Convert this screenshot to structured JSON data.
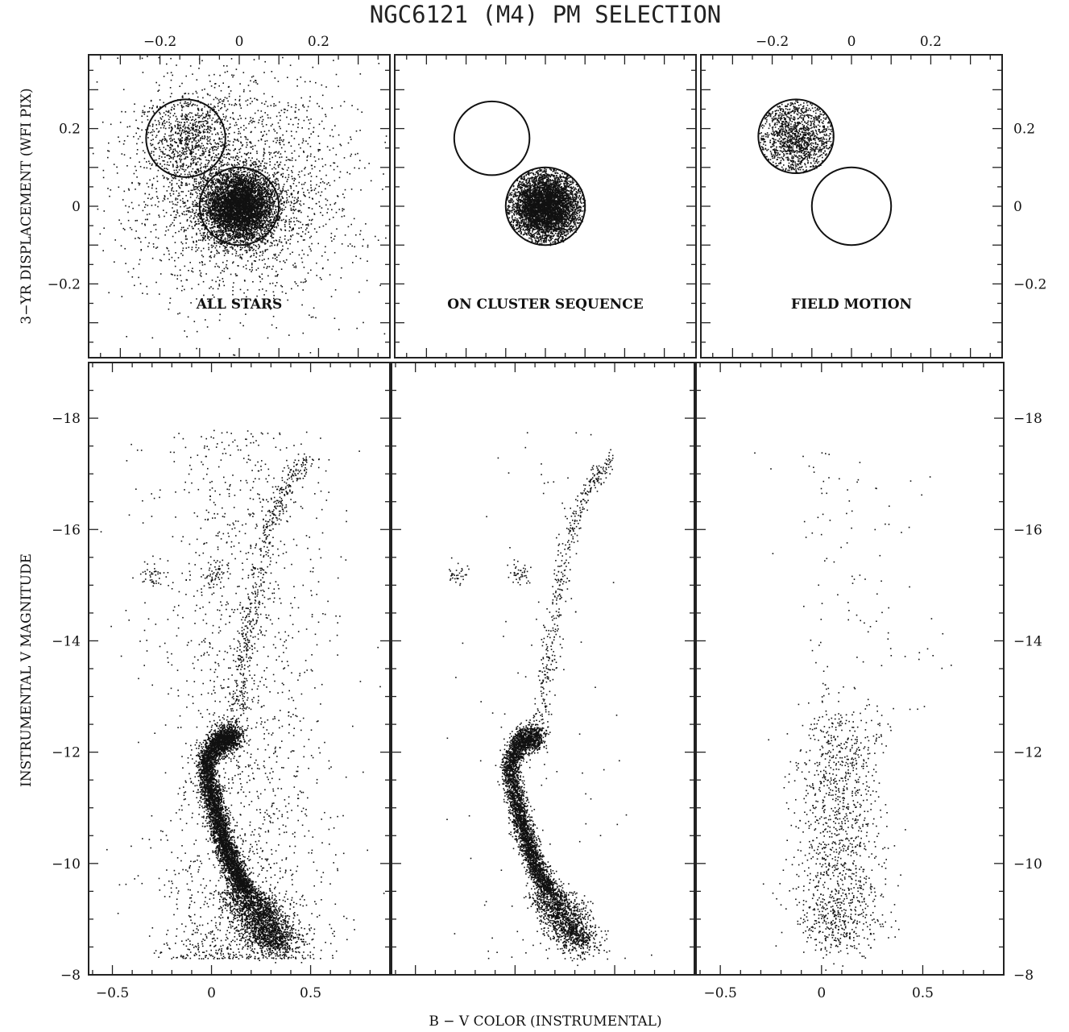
{
  "title": "NGC6121 (M4) PM SELECTION",
  "colors": {
    "points": "#111111",
    "frame": "#222222",
    "background": "#ffffff"
  },
  "chart_data": [
    {
      "type": "scatter",
      "panel": "top-left",
      "label": "ALL STARS",
      "xlim": [
        -0.38,
        0.38
      ],
      "ylim": [
        -0.39,
        0.39
      ],
      "xticks": [
        -0.2,
        0,
        0.2
      ],
      "xticklabels": [
        "−0.2",
        "0",
        "0.2"
      ],
      "yticks": [
        -0.2,
        0,
        0.2
      ],
      "yticklabels": [
        "−0.2",
        "0",
        "0.2"
      ],
      "ylabel": "3−YR DISPLACEMENT (WFI PIX)",
      "populations": [
        {
          "center": [
            0.0,
            0.0
          ],
          "sigma": 0.045,
          "count": 5200
        },
        {
          "center": [
            -0.13,
            0.18
          ],
          "sigma": 0.055,
          "count": 700
        },
        {
          "center": [
            0.0,
            0.05
          ],
          "sigma": 0.15,
          "count": 2200
        }
      ],
      "selection_circles": [
        {
          "center": [
            -0.135,
            0.175
          ],
          "radius": 0.1
        },
        {
          "center": [
            0.0,
            0.0
          ],
          "radius": 0.1
        }
      ]
    },
    {
      "type": "scatter",
      "panel": "top-middle",
      "label": "ON CLUSTER SEQUENCE",
      "xlim": [
        -0.38,
        0.38
      ],
      "ylim": [
        -0.39,
        0.39
      ],
      "populations": [
        {
          "center": [
            0.0,
            0.0
          ],
          "sigma": 0.045,
          "count": 4800,
          "clip_radius": 0.1
        }
      ],
      "selection_circles": [
        {
          "center": [
            -0.135,
            0.175
          ],
          "radius": 0.095
        },
        {
          "center": [
            0.0,
            0.0
          ],
          "radius": 0.1
        }
      ]
    },
    {
      "type": "scatter",
      "panel": "top-right",
      "label": "FIELD MOTION",
      "xlim": [
        -0.38,
        0.38
      ],
      "ylim": [
        -0.39,
        0.39
      ],
      "xticks": [
        -0.2,
        0,
        0.2
      ],
      "xticklabels": [
        "−0.2",
        "0",
        "0.2"
      ],
      "yticks": [
        -0.2,
        0,
        0.2
      ],
      "yticklabels": [
        "−0.2",
        "0",
        "0.2"
      ],
      "populations": [
        {
          "center": [
            -0.14,
            0.18
          ],
          "sigma": 0.055,
          "count": 1300,
          "clip_radius": 0.095
        }
      ],
      "selection_circles": [
        {
          "center": [
            -0.14,
            0.18
          ],
          "radius": 0.095
        },
        {
          "center": [
            0.0,
            0.0
          ],
          "radius": 0.1
        }
      ]
    },
    {
      "type": "scatter",
      "panel": "bottom-left",
      "description_of_marks": "color-magnitude diagram, all stars",
      "xlim": [
        -0.62,
        0.9
      ],
      "ylim": [
        -8,
        -19
      ],
      "xticks": [
        -0.5,
        0,
        0.5
      ],
      "xticklabels": [
        "−0.5",
        "0",
        "0.5"
      ],
      "yticks": [
        -18,
        -16,
        -14,
        -12,
        -10,
        -8
      ],
      "yticklabels": [
        "−18",
        "−16",
        "−14",
        "−12",
        "−10",
        "−8"
      ],
      "ylabel": "INSTRUMENTAL V MAGNITUDE",
      "sequence": {
        "main_sequence": [
          [
            0.33,
            -8.5
          ],
          [
            0.22,
            -9.2
          ],
          [
            0.12,
            -9.8
          ],
          [
            0.05,
            -10.5
          ],
          [
            0.0,
            -11.2
          ],
          [
            -0.03,
            -11.8
          ],
          [
            0.02,
            -12.2
          ],
          [
            0.12,
            -12.3
          ]
        ],
        "red_giant_branch": [
          [
            0.12,
            -12.3
          ],
          [
            0.14,
            -13.0
          ],
          [
            0.17,
            -14.0
          ],
          [
            0.22,
            -15.0
          ],
          [
            0.28,
            -16.0
          ],
          [
            0.37,
            -16.8
          ],
          [
            0.48,
            -17.3
          ]
        ],
        "horizontal_branch": [
          [
            -0.32,
            -15.2
          ],
          [
            0.02,
            -15.2
          ]
        ]
      },
      "counts": {
        "main_sequence": 7000,
        "red_giant_branch": 500,
        "horizontal_branch": 90,
        "field": 1900
      }
    },
    {
      "type": "scatter",
      "panel": "bottom-middle",
      "description_of_marks": "color-magnitude diagram, proper-motion selected cluster members",
      "xlim": [
        -0.62,
        0.9
      ],
      "ylim": [
        -8,
        -19
      ],
      "counts": {
        "main_sequence": 5000,
        "red_giant_branch": 420,
        "horizontal_branch": 80,
        "field": 120
      }
    },
    {
      "type": "scatter",
      "panel": "bottom-right",
      "description_of_marks": "color-magnitude diagram, field stars",
      "xlim": [
        -0.62,
        0.9
      ],
      "ylim": [
        -8,
        -19
      ],
      "xticks": [
        -0.5,
        0,
        0.5
      ],
      "xticklabels": [
        "−0.5",
        "0",
        "0.5"
      ],
      "yticks": [
        -18,
        -16,
        -14,
        -12,
        -10,
        -8
      ],
      "yticklabels": [
        "−18",
        "−16",
        "−14",
        "−12",
        "−10",
        "−8"
      ],
      "field_distribution": {
        "center_color": 0.08,
        "color_sigma": 0.11,
        "mag_range": [
          -8.6,
          -12.6
        ],
        "count": 1300
      },
      "xlabel": "B − V COLOR (INSTRUMENTAL)"
    }
  ],
  "panel_labels": [
    "ALL STARS",
    "ON CLUSTER SEQUENCE",
    "FIELD MOTION"
  ],
  "axis_labels": {
    "top_y": "3−YR DISPLACEMENT (WFI PIX)",
    "bottom_y": "INSTRUMENTAL V MAGNITUDE",
    "bottom_x": "B − V COLOR (INSTRUMENTAL)"
  }
}
